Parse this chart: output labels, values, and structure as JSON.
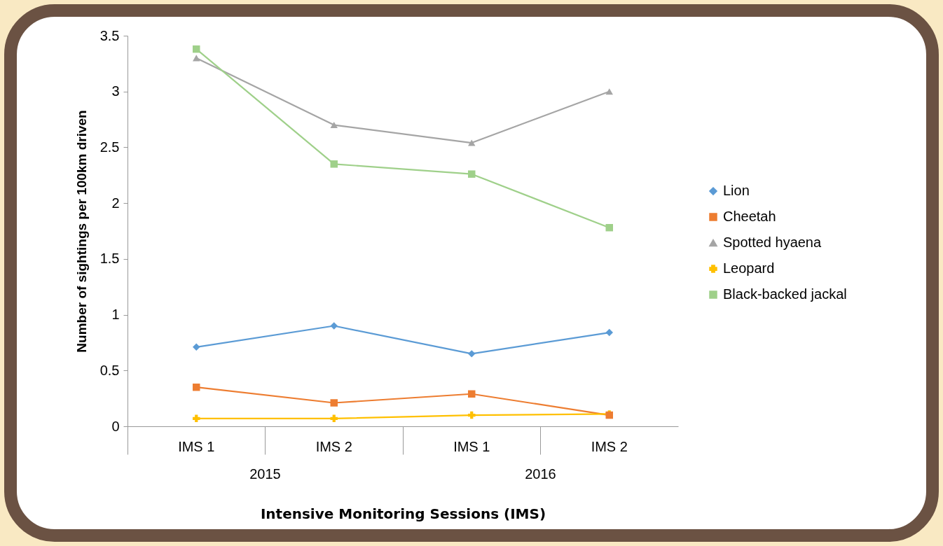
{
  "chart_data": {
    "type": "line",
    "ylabel": "Number of sightings  per 100km driven",
    "xlabel": "Intensive Monitoring Sessions (IMS)",
    "categories": [
      "IMS 1",
      "IMS 2",
      "IMS 1",
      "IMS 2"
    ],
    "annotations": [
      "2015",
      "2016"
    ],
    "ylim": [
      0,
      3.5
    ],
    "yticks": [
      0,
      0.5,
      1,
      1.5,
      2,
      2.5,
      3,
      3.5
    ],
    "grid": false,
    "legend": "right",
    "series": [
      {
        "name": "Lion",
        "color": "#5b9bd5",
        "marker": "diamond",
        "values": [
          0.71,
          0.9,
          0.65,
          0.84
        ]
      },
      {
        "name": "Cheetah",
        "color": "#ed7d31",
        "marker": "square",
        "values": [
          0.35,
          0.21,
          0.29,
          0.1
        ]
      },
      {
        "name": "Spotted hyaena",
        "color": "#a5a5a5",
        "marker": "triangle",
        "values": [
          3.3,
          2.7,
          2.54,
          3.0
        ]
      },
      {
        "name": "Leopard",
        "color": "#ffc000",
        "marker": "cross",
        "values": [
          0.07,
          0.07,
          0.1,
          0.11
        ]
      },
      {
        "name": "Black-backed jackal",
        "color": "#9fd08a",
        "marker": "square",
        "values": [
          3.38,
          2.35,
          2.26,
          1.78
        ]
      }
    ]
  }
}
